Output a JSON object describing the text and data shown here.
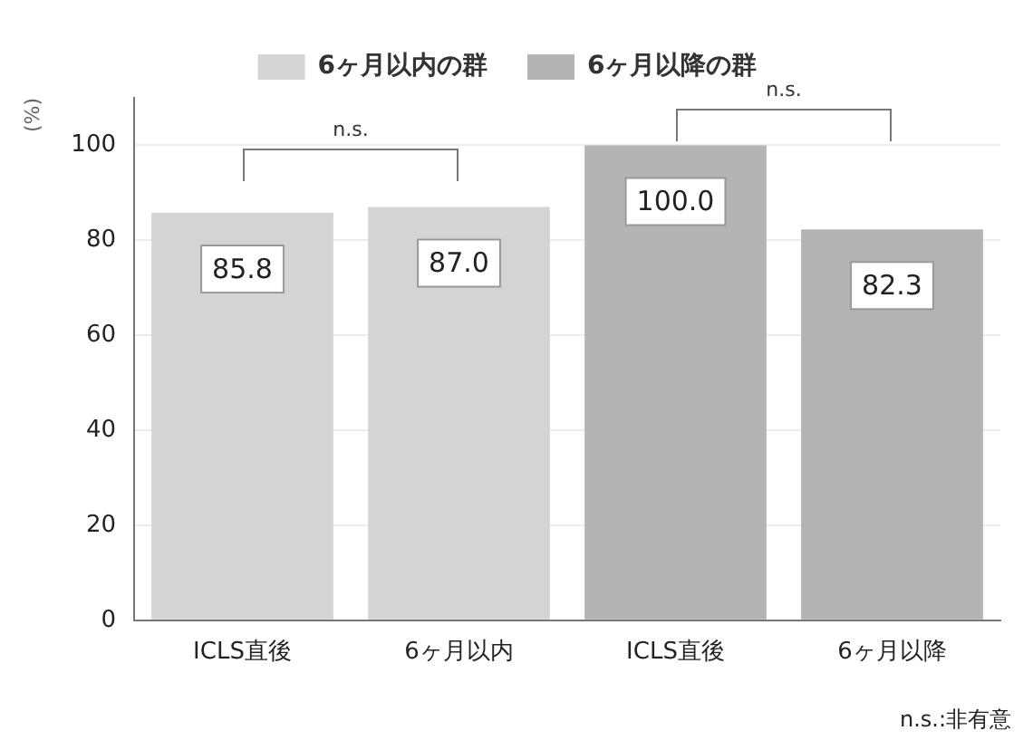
{
  "chart_data": {
    "type": "bar",
    "ylabel": "(%)",
    "categories": [
      "ICLS直後",
      "6ヶ月以内",
      "ICLS直後",
      "6ヶ月以降"
    ],
    "series": [
      {
        "name": "6ヶ月以内の群",
        "color": "#d4d4d4",
        "values": [
          85.8,
          87.0,
          null,
          null
        ],
        "value_labels": [
          "85.8",
          "87.0",
          null,
          null
        ]
      },
      {
        "name": "6ヶ月以降の群",
        "color": "#b4b4b4",
        "values": [
          null,
          null,
          100.0,
          82.3
        ],
        "value_labels": [
          null,
          null,
          "100.0",
          "82.3"
        ]
      }
    ],
    "ylim": [
      0,
      110
    ],
    "yticks": [
      0,
      20,
      40,
      60,
      80,
      100
    ],
    "grid": "y",
    "legend": "top",
    "annotations": [
      "n.s.",
      "n.s.",
      "n.s.:非有意"
    ]
  }
}
